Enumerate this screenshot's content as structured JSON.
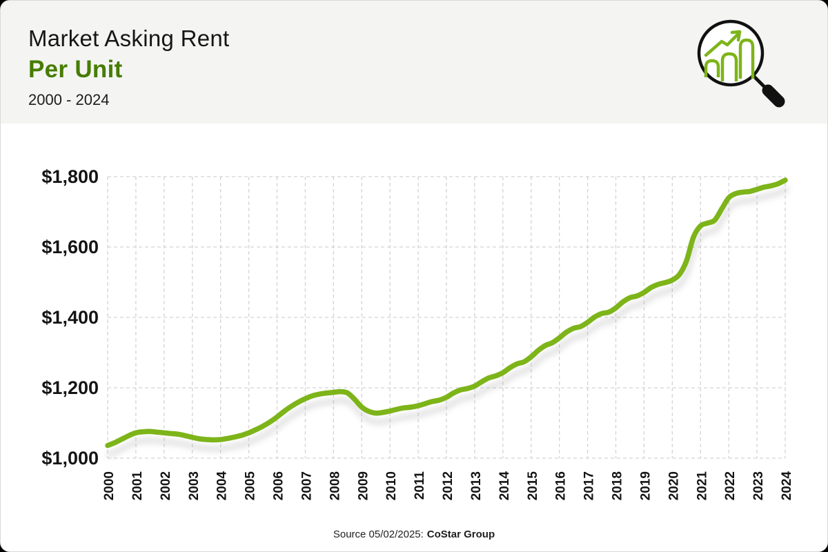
{
  "header": {
    "title": "Market Asking Rent",
    "subtitle": "Per Unit",
    "range": "2000 - 2024",
    "icon": "magnifier-bar-chart-icon"
  },
  "source": {
    "prefix": "Source 05/02/2025:",
    "name": "CoStar Group"
  },
  "colors": {
    "line": "#7db419",
    "line_shadow": "#9a9a9a",
    "subtitle_green": "#467c00",
    "header_bg": "#f4f4f2",
    "grid": "#d3d3d3",
    "text": "#141414",
    "card_bg": "#ffffff"
  },
  "chart_data": {
    "type": "line",
    "title": "Market Asking Rent Per Unit, 2000 - 2024",
    "series_name": "Market Asking Rent Per Unit ($)",
    "xlabel": "",
    "ylabel": "",
    "grid": "dashed",
    "legend": false,
    "xlim": [
      2000,
      2024
    ],
    "ylim": [
      1000,
      1800
    ],
    "yticks": [
      1000,
      1200,
      1400,
      1600,
      1800
    ],
    "ytick_labels": [
      "$1,000",
      "$1,200",
      "$1,400",
      "$1,600",
      "$1,800"
    ],
    "xticks": [
      2000,
      2001,
      2002,
      2003,
      2004,
      2005,
      2006,
      2007,
      2008,
      2009,
      2010,
      2011,
      2012,
      2013,
      2014,
      2015,
      2016,
      2017,
      2018,
      2019,
      2020,
      2021,
      2022,
      2023,
      2024
    ],
    "x": [
      2000,
      2000.25,
      2000.5,
      2000.75,
      2001,
      2001.25,
      2001.5,
      2001.75,
      2002,
      2002.25,
      2002.5,
      2002.75,
      2003,
      2003.25,
      2003.5,
      2003.75,
      2004,
      2004.25,
      2004.5,
      2004.75,
      2005,
      2005.25,
      2005.5,
      2005.75,
      2006,
      2006.25,
      2006.5,
      2006.75,
      2007,
      2007.25,
      2007.5,
      2007.75,
      2008,
      2008.25,
      2008.5,
      2008.75,
      2009,
      2009.25,
      2009.5,
      2009.75,
      2010,
      2010.25,
      2010.5,
      2010.75,
      2011,
      2011.25,
      2011.5,
      2011.75,
      2012,
      2012.25,
      2012.5,
      2012.75,
      2013,
      2013.25,
      2013.5,
      2013.75,
      2014,
      2014.25,
      2014.5,
      2014.75,
      2015,
      2015.25,
      2015.5,
      2015.75,
      2016,
      2016.25,
      2016.5,
      2016.75,
      2017,
      2017.25,
      2017.5,
      2017.75,
      2018,
      2018.25,
      2018.5,
      2018.75,
      2019,
      2019.25,
      2019.5,
      2019.75,
      2020,
      2020.25,
      2020.5,
      2020.75,
      2021,
      2021.25,
      2021.5,
      2021.75,
      2022,
      2022.25,
      2022.5,
      2022.75,
      2023,
      2023.25,
      2023.5,
      2023.75,
      2024
    ],
    "values": [
      1036,
      1044,
      1054,
      1064,
      1072,
      1075,
      1076,
      1074,
      1072,
      1070,
      1068,
      1064,
      1059,
      1055,
      1053,
      1052,
      1053,
      1056,
      1060,
      1065,
      1072,
      1081,
      1091,
      1103,
      1117,
      1133,
      1147,
      1159,
      1169,
      1177,
      1182,
      1185,
      1187,
      1189,
      1185,
      1167,
      1145,
      1133,
      1128,
      1130,
      1134,
      1139,
      1143,
      1145,
      1149,
      1155,
      1161,
      1165,
      1173,
      1185,
      1194,
      1198,
      1205,
      1217,
      1228,
      1234,
      1243,
      1257,
      1268,
      1274,
      1288,
      1306,
      1320,
      1328,
      1342,
      1358,
      1369,
      1374,
      1386,
      1401,
      1411,
      1415,
      1427,
      1444,
      1456,
      1461,
      1471,
      1485,
      1494,
      1499,
      1506,
      1522,
      1560,
      1628,
      1660,
      1668,
      1676,
      1708,
      1740,
      1752,
      1756,
      1758,
      1764,
      1770,
      1774,
      1780,
      1790
    ]
  }
}
